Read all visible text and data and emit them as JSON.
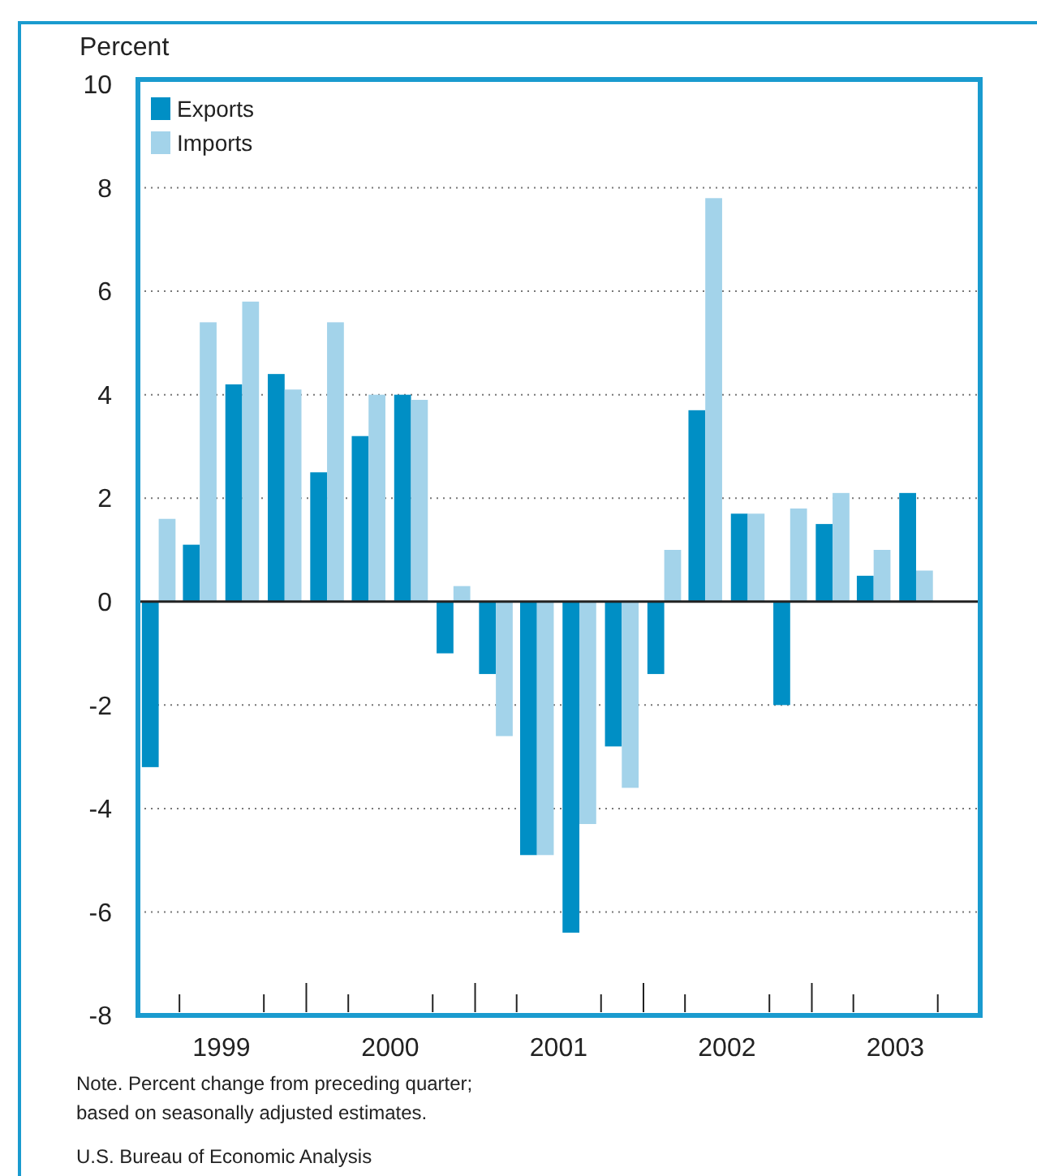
{
  "chart_data": {
    "type": "bar",
    "ylabel": "Percent",
    "x": [
      "1999-02-15",
      "1999-05-15",
      "1999-08-15",
      "1999-11-15",
      "2000-02-15",
      "2000-05-15",
      "2000-08-15",
      "2000-11-15",
      "2001-02-15",
      "2001-05-15",
      "2001-08-15",
      "2001-11-15",
      "2002-02-15",
      "2002-05-15",
      "2002-08-15",
      "2002-11-15",
      "2003-02-15",
      "2003-05-15",
      "2003-08-15"
    ],
    "series": [
      {
        "name": "Exports",
        "color": "#008fc5",
        "values": [
          -3.2,
          1.1,
          4.2,
          4.4,
          2.5,
          3.2,
          4.0,
          -1.0,
          -1.4,
          -4.9,
          -6.4,
          -2.8,
          -1.4,
          3.7,
          1.7,
          -2.0,
          1.5,
          0.5,
          2.1
        ]
      },
      {
        "name": "Imports",
        "color": "#a3d3ea",
        "values": [
          1.6,
          5.4,
          5.8,
          4.1,
          5.4,
          4.0,
          3.9,
          0.3,
          -2.6,
          -4.9,
          -4.3,
          -3.6,
          1.0,
          7.8,
          1.7,
          1.8,
          2.1,
          1.0,
          0.6
        ]
      }
    ],
    "xlim": [
      "1999-01-01",
      "2004-01-01"
    ],
    "xticks": [
      {
        "value": "1999-04-01",
        "label": null
      },
      {
        "value": "1999-07-01",
        "label": "1999"
      },
      {
        "value": "1999-10-01",
        "label": null
      },
      {
        "value": "2000-01-01",
        "label": null
      },
      {
        "value": "2000-04-01",
        "label": null
      },
      {
        "value": "2000-07-01",
        "label": "2000"
      },
      {
        "value": "2000-10-01",
        "label": null
      },
      {
        "value": "2001-01-01",
        "label": null
      },
      {
        "value": "2001-04-01",
        "label": null
      },
      {
        "value": "2001-07-01",
        "label": "2001"
      },
      {
        "value": "2001-10-01",
        "label": null
      },
      {
        "value": "2002-01-01",
        "label": null
      },
      {
        "value": "2002-04-01",
        "label": null
      },
      {
        "value": "2002-07-01",
        "label": "2002"
      },
      {
        "value": "2002-10-01",
        "label": null
      },
      {
        "value": "2003-01-01",
        "label": null
      },
      {
        "value": "2003-04-01",
        "label": null
      },
      {
        "value": "2003-07-01",
        "label": "2003"
      },
      {
        "value": "2003-10-01",
        "label": null
      }
    ],
    "ylim": [
      -8,
      10
    ],
    "yticks": [
      -8,
      -6,
      -4,
      -2,
      0,
      2,
      4,
      6,
      8,
      10
    ],
    "grid": "y",
    "legend": "top left",
    "annotations": [
      "Note. Percent change from preceding quarter; based on seasonally adjusted estimates.",
      "U.S. Bureau of Economic Analysis"
    ]
  }
}
